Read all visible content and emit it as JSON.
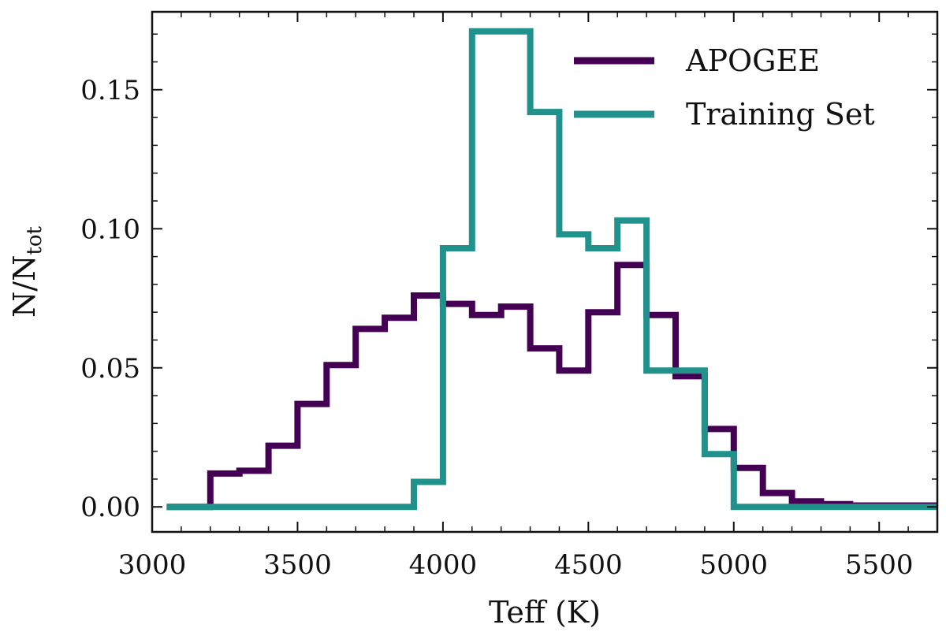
{
  "chart_data": {
    "type": "step",
    "title": "",
    "xlabel": "Teff (K)",
    "ylabel_main": "N/N",
    "ylabel_sub": "tot",
    "xlim": [
      3000,
      5700
    ],
    "ylim": [
      -0.009,
      0.178
    ],
    "xticks": [
      3000,
      3500,
      4000,
      4500,
      5000,
      5500
    ],
    "yticks": [
      0.0,
      0.05,
      0.1,
      0.15
    ],
    "xtick_labels": [
      "3000",
      "3500",
      "4000",
      "4500",
      "5000",
      "5500"
    ],
    "ytick_labels": [
      "0.00",
      "0.05",
      "0.10",
      "0.15"
    ],
    "legend_position": "top-right",
    "series": [
      {
        "name": "APOGEE",
        "color": "#440154",
        "bin_edges": [
          3050,
          3100,
          3200,
          3300,
          3400,
          3500,
          3600,
          3700,
          3800,
          3900,
          4000,
          4100,
          4200,
          4300,
          4400,
          4500,
          4600,
          4700,
          4800,
          4900,
          5000,
          5100,
          5200,
          5300,
          5400,
          5500,
          5600,
          5700
        ],
        "values": [
          0.0,
          0.0,
          0.012,
          0.013,
          0.022,
          0.037,
          0.051,
          0.064,
          0.068,
          0.076,
          0.073,
          0.069,
          0.072,
          0.057,
          0.049,
          0.07,
          0.087,
          0.069,
          0.047,
          0.028,
          0.014,
          0.005,
          0.002,
          0.001,
          0.0005,
          0.0005,
          0.0005
        ]
      },
      {
        "name": "Training Set",
        "color": "#21918c",
        "bin_edges": [
          3050,
          3100,
          3200,
          3300,
          3400,
          3500,
          3600,
          3700,
          3800,
          3900,
          4000,
          4100,
          4200,
          4300,
          4400,
          4500,
          4600,
          4700,
          4800,
          4900,
          5000,
          5100,
          5200,
          5300,
          5400,
          5500,
          5600,
          5700
        ],
        "values": [
          0.0,
          0.0,
          0.0,
          0.0,
          0.0,
          0.0,
          0.0,
          0.0,
          0.0,
          0.009,
          0.093,
          0.171,
          0.171,
          0.142,
          0.098,
          0.093,
          0.103,
          0.049,
          0.049,
          0.019,
          0.0,
          0.0,
          0.0,
          0.0,
          0.0,
          0.0,
          0.0
        ]
      }
    ]
  }
}
